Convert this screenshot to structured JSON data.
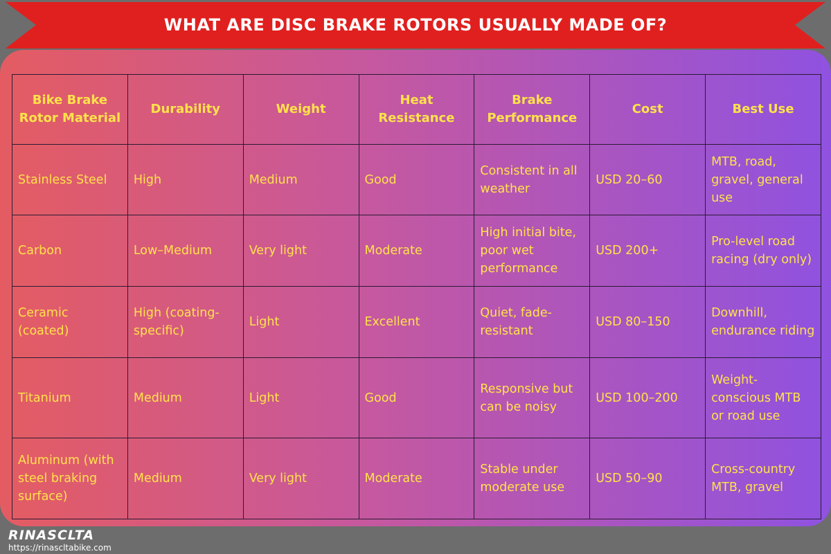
{
  "header": {
    "title": "WHAT ARE DISC BRAKE ROTORS USUALLY MADE OF?"
  },
  "table": {
    "columns": [
      "Bike Brake Rotor Material",
      "Durability",
      "Weight",
      "Heat Resistance",
      "Brake Performance",
      "Cost",
      "Best Use"
    ],
    "rows": [
      [
        "Stainless Steel",
        "High",
        "Medium",
        "Good",
        "Consistent in all weather",
        "USD 20–60",
        "MTB, road, gravel, general use"
      ],
      [
        "Carbon",
        "Low–Medium",
        "Very light",
        "Moderate",
        "High initial bite, poor wet performance",
        "USD 200+",
        "Pro-level road racing (dry only)"
      ],
      [
        "Ceramic (coated)",
        "High (coating-specific)",
        "Light",
        "Excellent",
        "Quiet, fade-resistant",
        "USD 80–150",
        "Downhill, endurance riding"
      ],
      [
        "Titanium",
        "Medium",
        "Light",
        "Good",
        "Responsive but can be noisy",
        "USD 100–200",
        "Weight-conscious MTB or road use"
      ],
      [
        "Aluminum (with steel braking surface)",
        "Medium",
        "Very light",
        "Moderate",
        "Stable under moderate use",
        "USD 50–90",
        "Cross-country MTB, gravel"
      ]
    ]
  },
  "footer": {
    "brand": "RINASCLTA",
    "url": "https://rinascltabike.com"
  }
}
